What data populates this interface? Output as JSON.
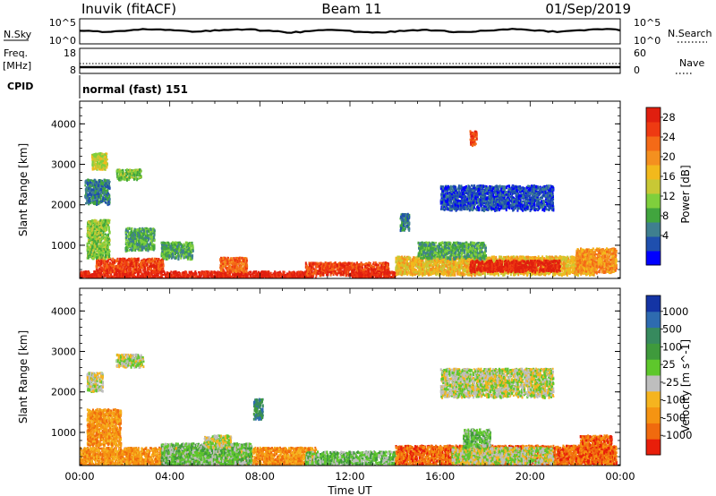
{
  "header": {
    "station": "Inuvik  (fitACF)",
    "beam": "Beam 11",
    "date": "01/Sep/2019"
  },
  "status_panels": {
    "nsky": {
      "label": "N.Sky",
      "tick_top": "10^5",
      "tick_bottom": "10^0"
    },
    "nsearch": {
      "label": "N.Search",
      "tick_top": "10^5",
      "tick_bottom": "10^0"
    },
    "freq": {
      "label_line1": "Freq.",
      "label_line2": "[MHz]",
      "tick_top": "18",
      "tick_bottom": "8"
    },
    "nave": {
      "label": "Nave",
      "tick_top": "60",
      "tick_bottom": "0"
    },
    "cpid": {
      "label": "CPID",
      "value": "normal (fast) 151"
    }
  },
  "chart_data": [
    {
      "type": "heatmap",
      "title": "",
      "xlabel": "",
      "ylabel": "Slant Range [km]",
      "xlim": [
        0,
        24
      ],
      "ylim": [
        180,
        4560
      ],
      "ytick_labels": [
        "1000",
        "2000",
        "3000",
        "4000"
      ],
      "colorbar": {
        "label": "Power [dB]",
        "tick_labels": [
          "4",
          "8",
          "12",
          "16",
          "20",
          "24",
          "28"
        ],
        "colors": [
          "#0000ff",
          "#1f4fae",
          "#3f7f8f",
          "#41a53e",
          "#7fcf3c",
          "#c8c835",
          "#f2b91c",
          "#f4901f",
          "#f46a17",
          "#ee3a12",
          "#e01f0f"
        ]
      },
      "regions": [
        {
          "x": [
            0.0,
            10.5
          ],
          "y": [
            180,
            380
          ],
          "level": 10
        },
        {
          "x": [
            0.7,
            3.7
          ],
          "y": [
            380,
            700
          ],
          "level": 9
        },
        {
          "x": [
            6.2,
            7.4
          ],
          "y": [
            380,
            720
          ],
          "level": 8
        },
        {
          "x": [
            0.3,
            1.3
          ],
          "y": [
            700,
            1650
          ],
          "level": 4
        },
        {
          "x": [
            2.0,
            3.3
          ],
          "y": [
            900,
            1450
          ],
          "level": 3
        },
        {
          "x": [
            3.6,
            5.0
          ],
          "y": [
            700,
            1100
          ],
          "level": 3
        },
        {
          "x": [
            0.2,
            1.3
          ],
          "y": [
            2050,
            2650
          ],
          "level": 2
        },
        {
          "x": [
            1.6,
            2.7
          ],
          "y": [
            2650,
            2900
          ],
          "level": 4
        },
        {
          "x": [
            0.5,
            1.2
          ],
          "y": [
            2900,
            3300
          ],
          "level": 5
        },
        {
          "x": [
            10.0,
            13.7
          ],
          "y": [
            300,
            600
          ],
          "level": 9
        },
        {
          "x": [
            12.0,
            14.0
          ],
          "y": [
            180,
            380
          ],
          "level": 10
        },
        {
          "x": [
            14.0,
            22.8
          ],
          "y": [
            300,
            750
          ],
          "level": 6
        },
        {
          "x": [
            17.3,
            21.3
          ],
          "y": [
            380,
            650
          ],
          "level": 10
        },
        {
          "x": [
            15.0,
            18.0
          ],
          "y": [
            700,
            1100
          ],
          "level": 3
        },
        {
          "x": [
            22.0,
            23.8
          ],
          "y": [
            350,
            950
          ],
          "level": 7
        },
        {
          "x": [
            14.2,
            14.6
          ],
          "y": [
            1400,
            1800
          ],
          "level": 2
        },
        {
          "x": [
            16.0,
            21.0
          ],
          "y": [
            1900,
            2500
          ],
          "level": 1
        },
        {
          "x": [
            17.3,
            17.6
          ],
          "y": [
            3500,
            3850
          ],
          "level": 9
        }
      ]
    },
    {
      "type": "heatmap",
      "title": "",
      "xlabel": "Time UT",
      "ylabel": "Slant Range [km]",
      "xlim": [
        0,
        24
      ],
      "ylim": [
        180,
        4560
      ],
      "xtick_labels": [
        "00:00",
        "04:00",
        "08:00",
        "12:00",
        "16:00",
        "20:00",
        "00:00"
      ],
      "ytick_labels": [
        "1000",
        "2000",
        "3000",
        "4000"
      ],
      "colorbar": {
        "label": "Velocity [m s^-1]",
        "tick_labels": [
          "1000",
          "500",
          "100",
          "25",
          "-25",
          "-100",
          "-500",
          "-1000"
        ],
        "colors": [
          "#1434a4",
          "#2e6bb0",
          "#378a5e",
          "#3f9a3c",
          "#5ec72c",
          "#bebebe",
          "#f5b41f",
          "#f59412",
          "#f06a0e",
          "#e81e0a"
        ]
      },
      "regions": [
        {
          "x": [
            0.0,
            10.5
          ],
          "y": [
            180,
            650
          ],
          "level": 7
        },
        {
          "x": [
            3.6,
            7.6
          ],
          "y": [
            180,
            750
          ],
          "level": 4
        },
        {
          "x": [
            0.3,
            1.8
          ],
          "y": [
            700,
            1600
          ],
          "level": 7
        },
        {
          "x": [
            5.5,
            6.7
          ],
          "y": [
            650,
            950
          ],
          "level": 5
        },
        {
          "x": [
            1.6,
            2.8
          ],
          "y": [
            2650,
            2950
          ],
          "level": 5
        },
        {
          "x": [
            0.3,
            1.0
          ],
          "y": [
            2050,
            2500
          ],
          "level": 5
        },
        {
          "x": [
            7.7,
            8.1
          ],
          "y": [
            1350,
            1850
          ],
          "level": 2
        },
        {
          "x": [
            10.0,
            14.0
          ],
          "y": [
            200,
            550
          ],
          "level": 4
        },
        {
          "x": [
            14.0,
            23.8
          ],
          "y": [
            200,
            700
          ],
          "level": 8
        },
        {
          "x": [
            16.5,
            21.0
          ],
          "y": [
            250,
            650
          ],
          "level": 5
        },
        {
          "x": [
            16.0,
            21.0
          ],
          "y": [
            1900,
            2600
          ],
          "level": 5
        },
        {
          "x": [
            22.2,
            23.6
          ],
          "y": [
            300,
            950
          ],
          "level": 8
        },
        {
          "x": [
            17.0,
            18.2
          ],
          "y": [
            650,
            1100
          ],
          "level": 4
        }
      ]
    }
  ]
}
